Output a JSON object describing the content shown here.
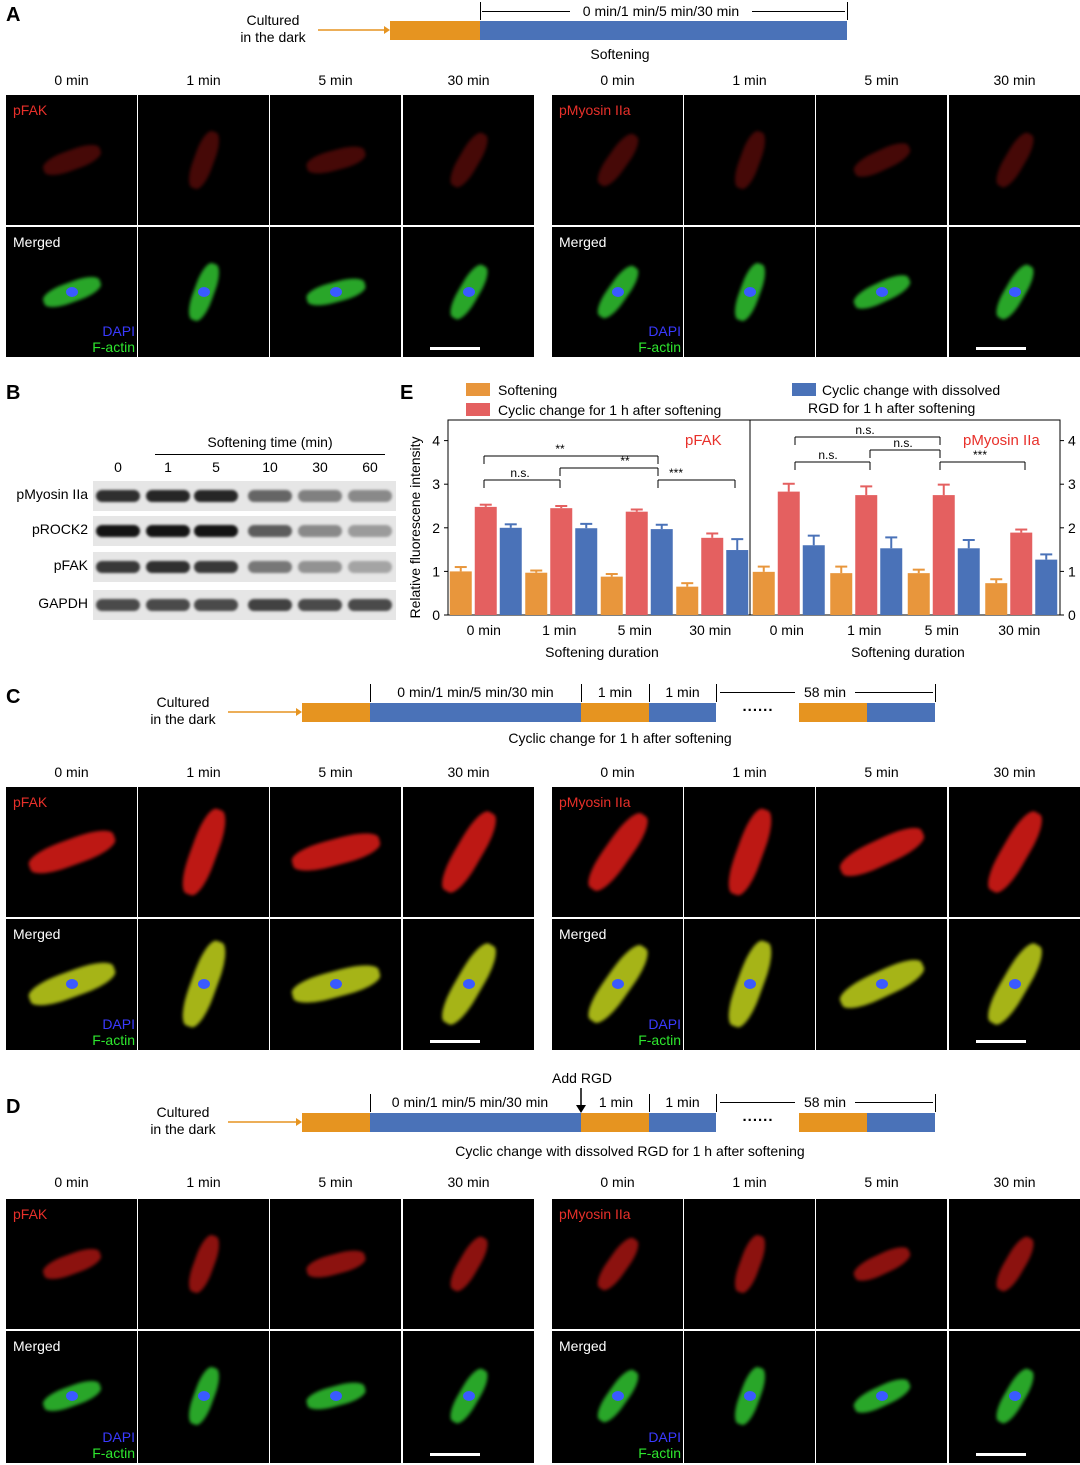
{
  "panels": {
    "a": "A",
    "b": "B",
    "c": "C",
    "d": "D",
    "e": "E"
  },
  "panel_a": {
    "cultured": [
      "Cultured",
      "in the dark"
    ],
    "duration": "0 min/1 min/5 min/30 min",
    "softening": "Softening"
  },
  "panel_c": {
    "cultured": [
      "Cultured",
      "in the dark"
    ],
    "duration": "0 min/1 min/5 min/30 min",
    "one_min_a": "1 min",
    "one_min_b": "1 min",
    "dots": "......",
    "fifty_eight": "58 min",
    "caption": "Cyclic change for 1 h after softening"
  },
  "panel_d": {
    "cultured": [
      "Cultured",
      "in the dark"
    ],
    "add_rgd": "Add RGD",
    "duration": "0 min/1 min/5 min/30 min",
    "one_min_a": "1 min",
    "one_min_b": "1 min",
    "dots": "......",
    "fifty_eight": "58 min",
    "caption": "Cyclic change with dissolved RGD for 1 h after softening"
  },
  "time_labels": [
    "0 min",
    "1 min",
    "5 min",
    "30 min"
  ],
  "tile_labels": {
    "pfak": "pFAK",
    "pmyosin": "pMyosin IIa",
    "merged": "Merged",
    "dapi": "DAPI",
    "factin": "F-actin"
  },
  "blot": {
    "title": "Softening time (min)",
    "times": [
      "0",
      "1",
      "5",
      "10",
      "30",
      "60"
    ],
    "rows": [
      "pMyosin IIa",
      "pROCK2",
      "pFAK",
      "GAPDH"
    ],
    "intensity": [
      [
        0.85,
        0.9,
        0.9,
        0.55,
        0.4,
        0.35
      ],
      [
        1.0,
        1.0,
        1.0,
        0.6,
        0.35,
        0.25
      ],
      [
        0.8,
        0.85,
        0.8,
        0.45,
        0.3,
        0.2
      ],
      [
        0.7,
        0.7,
        0.7,
        0.75,
        0.7,
        0.7
      ]
    ]
  },
  "chart_data": {
    "type": "bar",
    "ylabel": "Relative fluorescene intensity",
    "xlabel": "Softening duration",
    "ylim": [
      0,
      4.4
    ],
    "yticks": [
      "0",
      "1",
      "2",
      "3",
      "4"
    ],
    "legend": [
      "Softening",
      "Cyclic change for 1 h after softening",
      "Cyclic change with dissolved RGD for 1 h after softening"
    ],
    "legend_lines": {
      "item3": [
        "Cyclic change with dissolved",
        "RGD for 1 h after softening"
      ]
    },
    "colors": [
      "#e8963c",
      "#e46060",
      "#4a72b8"
    ],
    "significance": [
      "**",
      "**",
      "n.s.",
      "***",
      "n.s.",
      "n.s.",
      "n.s.",
      "***"
    ],
    "subplots": [
      {
        "title": "pFAK",
        "categories": [
          "0 min",
          "1 min",
          "5 min",
          "30 min"
        ],
        "series": [
          {
            "name": "Softening",
            "values": [
              1.0,
              0.97,
              0.88,
              0.65
            ],
            "err": [
              0.1,
              0.05,
              0.06,
              0.08
            ]
          },
          {
            "name": "Cyclic change for 1 h after softening",
            "values": [
              2.48,
              2.45,
              2.37,
              1.77
            ],
            "err": [
              0.05,
              0.05,
              0.05,
              0.1
            ]
          },
          {
            "name": "Cyclic change with dissolved RGD for 1 h after softening",
            "values": [
              2.0,
              1.99,
              1.97,
              1.49
            ],
            "err": [
              0.08,
              0.1,
              0.1,
              0.25
            ]
          }
        ]
      },
      {
        "title": "pMyosin IIa",
        "categories": [
          "0 min",
          "1 min",
          "5 min",
          "30 min"
        ],
        "series": [
          {
            "name": "Softening",
            "values": [
              0.99,
              0.96,
              0.96,
              0.73
            ],
            "err": [
              0.12,
              0.15,
              0.08,
              0.09
            ]
          },
          {
            "name": "Cyclic change for 1 h after softening",
            "values": [
              2.83,
              2.75,
              2.75,
              1.89
            ],
            "err": [
              0.18,
              0.2,
              0.24,
              0.07
            ]
          },
          {
            "name": "Cyclic change with dissolved RGD for 1 h after softening",
            "values": [
              1.6,
              1.53,
              1.53,
              1.27
            ],
            "err": [
              0.22,
              0.25,
              0.19,
              0.12
            ]
          }
        ]
      }
    ]
  }
}
